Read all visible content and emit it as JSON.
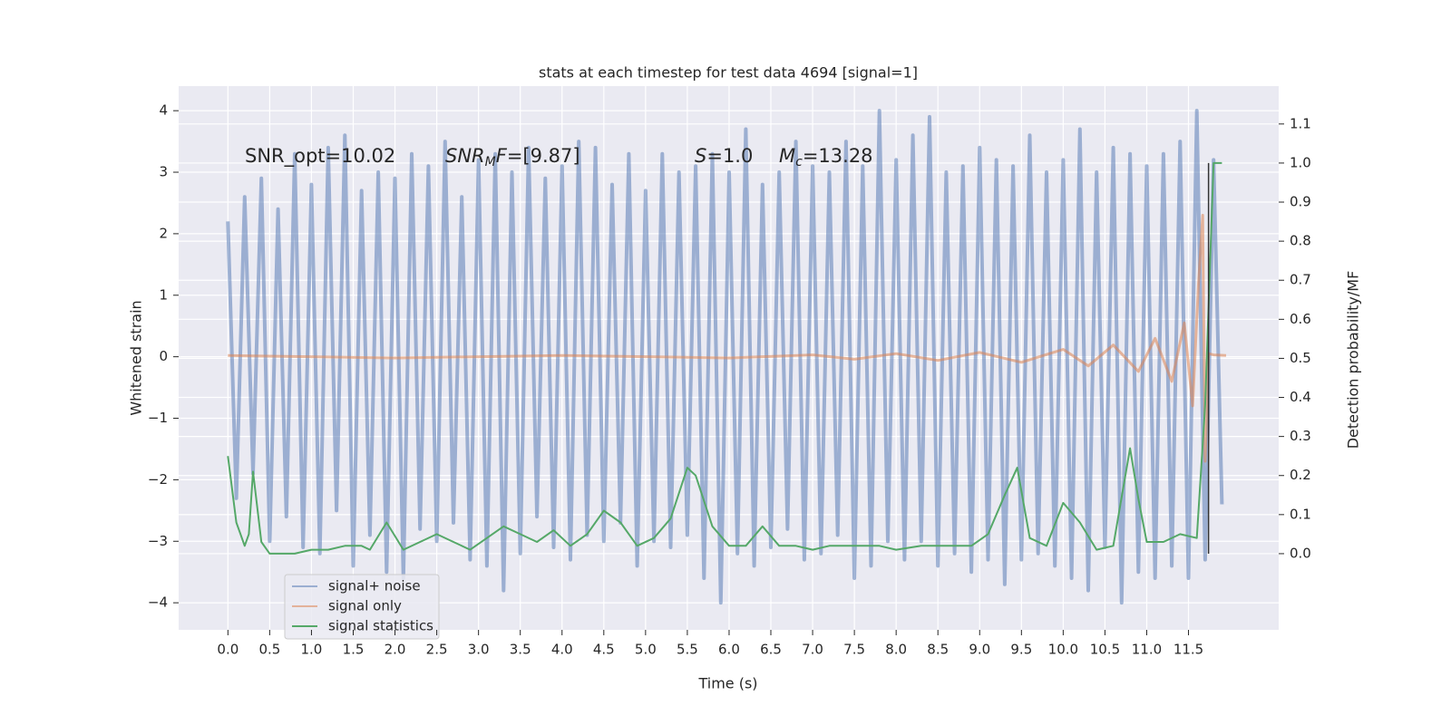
{
  "chart_data": {
    "type": "line",
    "title": "stats at each timestep for test data 4694 [signal=1]",
    "xlabel": "Time (s)",
    "ylabel": "Whitened strain",
    "y2label": "Detection probability/MF",
    "annotations": [
      [
        {
          "text": "SNR_opt=10.02",
          "style": "normal"
        }
      ],
      [
        {
          "text": "SNR",
          "style": "italic"
        },
        {
          "text": "M",
          "style": "sub"
        },
        {
          "text": "F",
          "style": "italic"
        },
        {
          "text": "=[9.87]",
          "style": "normal"
        }
      ],
      [
        {
          "text": "S",
          "style": "italic"
        },
        {
          "text": "=1.0",
          "style": "normal"
        }
      ],
      [
        {
          "text": "M",
          "style": "italic"
        },
        {
          "text": "c",
          "style": "sub"
        },
        {
          "text": "=13.28",
          "style": "normal"
        }
      ]
    ],
    "xlim": [
      -0.59,
      12.58
    ],
    "ylim": [
      -4.44,
      4.4
    ],
    "y2lim": [
      -0.195,
      1.197
    ],
    "xticks": [
      {
        "value": 0,
        "label": "0.0"
      },
      {
        "value": 0.5,
        "label": "0.5"
      },
      {
        "value": 1,
        "label": "1.0"
      },
      {
        "value": 1.5,
        "label": "1.5"
      },
      {
        "value": 2,
        "label": "2.0"
      },
      {
        "value": 2.5,
        "label": "2.5"
      },
      {
        "value": 3,
        "label": "3.0"
      },
      {
        "value": 3.5,
        "label": "3.5"
      },
      {
        "value": 4,
        "label": "4.0"
      },
      {
        "value": 4.5,
        "label": "4.5"
      },
      {
        "value": 5,
        "label": "5.0"
      },
      {
        "value": 5.5,
        "label": "5.5"
      },
      {
        "value": 6,
        "label": "6.0"
      },
      {
        "value": 6.5,
        "label": "6.5"
      },
      {
        "value": 7,
        "label": "7.0"
      },
      {
        "value": 7.5,
        "label": "7.5"
      },
      {
        "value": 8,
        "label": "8.0"
      },
      {
        "value": 8.5,
        "label": "8.5"
      },
      {
        "value": 9,
        "label": "9.0"
      },
      {
        "value": 9.5,
        "label": "9.5"
      },
      {
        "value": 10,
        "label": "10.0"
      },
      {
        "value": 10.5,
        "label": "10.5"
      },
      {
        "value": 11,
        "label": "11.0"
      },
      {
        "value": 11.5,
        "label": "11.5"
      }
    ],
    "yticks": [
      {
        "value": -4,
        "label": "−4"
      },
      {
        "value": -3,
        "label": "−3"
      },
      {
        "value": -2,
        "label": "−2"
      },
      {
        "value": -1,
        "label": "−1"
      },
      0,
      1,
      2,
      3,
      4
    ],
    "y2ticks": [
      {
        "value": 0,
        "label": "0.0"
      },
      {
        "value": 0.1,
        "label": "0.1"
      },
      {
        "value": 0.2,
        "label": "0.2"
      },
      {
        "value": 0.3,
        "label": "0.3"
      },
      {
        "value": 0.4,
        "label": "0.4"
      },
      {
        "value": 0.5,
        "label": "0.5"
      },
      {
        "value": 0.6,
        "label": "0.6"
      },
      {
        "value": 0.7,
        "label": "0.7"
      },
      {
        "value": 0.8,
        "label": "0.8"
      },
      {
        "value": 0.9,
        "label": "0.9"
      },
      {
        "value": 1,
        "label": "1.0"
      },
      {
        "value": 1.1,
        "label": "1.1"
      }
    ],
    "grid": true,
    "legend": "lower left",
    "vline_x": 11.74,
    "vline_color": "#333333",
    "series": [
      {
        "name": "signal+ noise",
        "color": "#4c72b0",
        "x": [
          0,
          0.1,
          0.2,
          0.3,
          0.4,
          0.5,
          0.6,
          0.7,
          0.8,
          0.9,
          1,
          1.1,
          1.2,
          1.3,
          1.4,
          1.5,
          1.6,
          1.7,
          1.8,
          1.9,
          2,
          2.1,
          2.2,
          2.3,
          2.4,
          2.5,
          2.6,
          2.7,
          2.8,
          2.9,
          3,
          3.1,
          3.2,
          3.3,
          3.4,
          3.5,
          3.6,
          3.7,
          3.8,
          3.9,
          4,
          4.1,
          4.2,
          4.3,
          4.4,
          4.5,
          4.6,
          4.7,
          4.8,
          4.9,
          5,
          5.1,
          5.2,
          5.3,
          5.4,
          5.5,
          5.6,
          5.7,
          5.8,
          5.9,
          6,
          6.1,
          6.2,
          6.3,
          6.4,
          6.5,
          6.6,
          6.7,
          6.8,
          6.9,
          7,
          7.1,
          7.2,
          7.3,
          7.4,
          7.5,
          7.6,
          7.7,
          7.8,
          7.9,
          8,
          8.1,
          8.2,
          8.3,
          8.4,
          8.5,
          8.6,
          8.7,
          8.8,
          8.9,
          9,
          9.1,
          9.2,
          9.3,
          9.4,
          9.5,
          9.6,
          9.7,
          9.8,
          9.9,
          10,
          10.1,
          10.2,
          10.3,
          10.4,
          10.5,
          10.6,
          10.7,
          10.8,
          10.9,
          11,
          11.1,
          11.2,
          11.3,
          11.4,
          11.5,
          11.6,
          11.7,
          11.8,
          11.9
        ],
        "values": [
          2.2,
          -2.3,
          2.6,
          -1.9,
          2.9,
          -3.0,
          2.4,
          -2.6,
          3.3,
          -3.1,
          2.8,
          -3.2,
          3.4,
          -2.5,
          3.6,
          -3.4,
          2.7,
          -2.9,
          3.0,
          -3.5,
          2.9,
          -3.6,
          3.3,
          -2.8,
          3.1,
          -3.0,
          3.5,
          -2.7,
          2.6,
          -3.3,
          3.2,
          -3.4,
          3.3,
          -3.8,
          3.0,
          -3.2,
          3.4,
          -2.6,
          2.9,
          -3.1,
          3.1,
          -3.3,
          3.5,
          -2.9,
          3.4,
          -3.0,
          2.8,
          -2.7,
          3.3,
          -3.4,
          2.7,
          -3.0,
          3.3,
          -3.1,
          3.0,
          -2.9,
          3.1,
          -3.6,
          3.3,
          -4.0,
          3.0,
          -3.2,
          3.7,
          -3.4,
          2.8,
          -3.1,
          3.0,
          -2.8,
          3.5,
          -3.3,
          3.1,
          -3.2,
          3.0,
          -2.9,
          3.5,
          -3.6,
          3.1,
          -3.4,
          4.0,
          -3.0,
          3.2,
          -3.3,
          3.6,
          -3.0,
          3.9,
          -3.4,
          3.0,
          -3.2,
          3.1,
          -3.5,
          3.4,
          -3.3,
          3.2,
          -3.7,
          3.1,
          -3.3,
          3.6,
          -3.2,
          3.0,
          -3.4,
          3.2,
          -3.6,
          3.7,
          -3.8,
          3.0,
          -3.1,
          3.4,
          -4.0,
          3.3,
          -3.5,
          3.1,
          -3.6,
          3.3,
          -3.4,
          3.5,
          -3.6,
          4.0,
          -3.3,
          3.2,
          -2.4
        ]
      },
      {
        "name": "signal only",
        "color": "#dd8452",
        "x": [
          0,
          2,
          4,
          6,
          7,
          7.5,
          8,
          8.5,
          9,
          9.5,
          10,
          10.3,
          10.6,
          10.9,
          11.1,
          11.3,
          11.45,
          11.55,
          11.62,
          11.67,
          11.7,
          11.74,
          11.8,
          11.95
        ],
        "values": [
          0.02,
          -0.02,
          0.02,
          -0.02,
          0.03,
          -0.04,
          0.05,
          -0.06,
          0.07,
          -0.09,
          0.12,
          -0.15,
          0.19,
          -0.24,
          0.3,
          -0.4,
          0.55,
          -0.8,
          1.2,
          2.3,
          -1.7,
          0.05,
          0.03,
          0.02
        ]
      },
      {
        "name": "signal statistics",
        "color": "#55a868",
        "axis": "y2",
        "x": [
          0,
          0.1,
          0.2,
          0.25,
          0.3,
          0.4,
          0.5,
          0.6,
          0.8,
          1.0,
          1.2,
          1.4,
          1.6,
          1.7,
          1.9,
          2.1,
          2.3,
          2.5,
          2.7,
          2.9,
          3.1,
          3.3,
          3.5,
          3.7,
          3.9,
          4.1,
          4.3,
          4.5,
          4.7,
          4.9,
          5.1,
          5.3,
          5.5,
          5.6,
          5.8,
          6.0,
          6.2,
          6.4,
          6.6,
          6.8,
          7.0,
          7.2,
          7.5,
          7.8,
          8.0,
          8.3,
          8.6,
          8.9,
          9.1,
          9.3,
          9.45,
          9.6,
          9.8,
          10.0,
          10.2,
          10.4,
          10.6,
          10.8,
          10.9,
          11.0,
          11.2,
          11.4,
          11.6,
          11.7,
          11.8,
          11.9
        ],
        "values": [
          0.25,
          0.08,
          0.02,
          0.05,
          0.21,
          0.03,
          0.0,
          0.0,
          0.0,
          0.01,
          0.01,
          0.02,
          0.02,
          0.01,
          0.08,
          0.01,
          0.03,
          0.05,
          0.03,
          0.01,
          0.04,
          0.07,
          0.05,
          0.03,
          0.06,
          0.02,
          0.05,
          0.11,
          0.08,
          0.02,
          0.04,
          0.09,
          0.22,
          0.2,
          0.07,
          0.02,
          0.02,
          0.07,
          0.02,
          0.02,
          0.01,
          0.02,
          0.02,
          0.02,
          0.01,
          0.02,
          0.02,
          0.02,
          0.05,
          0.15,
          0.22,
          0.04,
          0.02,
          0.13,
          0.08,
          0.01,
          0.02,
          0.27,
          0.14,
          0.03,
          0.03,
          0.05,
          0.04,
          0.38,
          1.0,
          1.0
        ]
      }
    ]
  }
}
